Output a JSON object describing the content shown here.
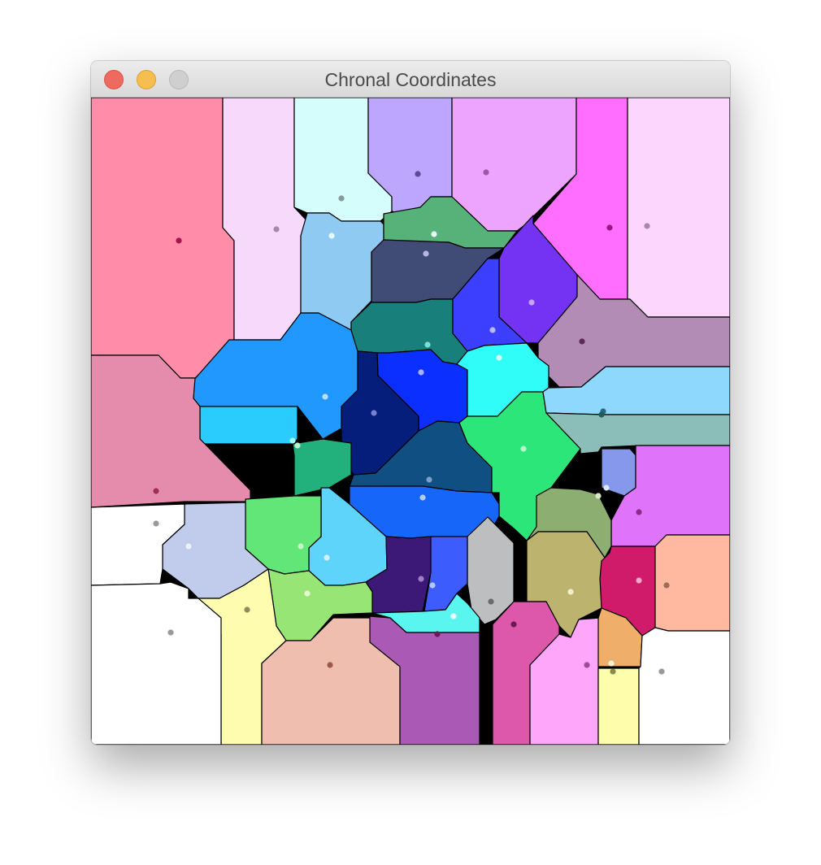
{
  "window": {
    "title": "Chronal Coordinates",
    "controls": [
      "close",
      "minimize",
      "zoom"
    ]
  },
  "colors": {
    "background": "#000000",
    "border": "#000000",
    "light_close": "#ee6a5e",
    "light_minimize": "#f5be4f",
    "light_zoom": "#cfcfcf"
  }
}
